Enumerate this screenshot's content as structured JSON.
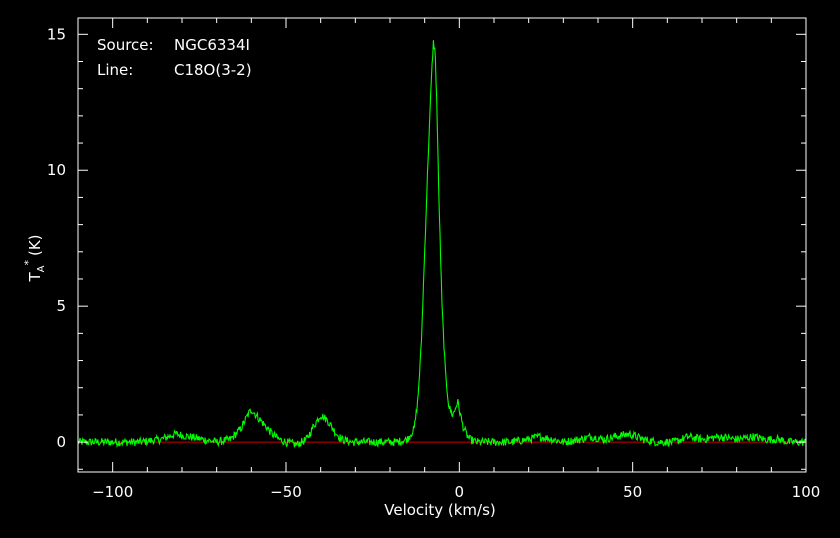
{
  "chart_data": {
    "type": "line",
    "info": {
      "source_label": "Source:",
      "source_value": "NGC6334I",
      "line_label": "Line:",
      "line_value": "C18O(3-2)"
    },
    "xlabel": "Velocity (km/s)",
    "ylabel_main": "T",
    "ylabel_sub": "A",
    "ylabel_sup": "*",
    "ylabel_unit": "(K)",
    "xlim": [
      -110,
      100
    ],
    "ylim": [
      -1.1,
      15.6
    ],
    "x_ticks": [
      -100,
      -50,
      0,
      50,
      100
    ],
    "x_tick_labels": [
      "−100",
      "−50",
      "0",
      "50",
      "100"
    ],
    "y_ticks": [
      0,
      5,
      10,
      15
    ],
    "y_tick_labels": [
      "0",
      "5",
      "10",
      "15"
    ],
    "x_minor_step": 10,
    "y_minor_step": 1,
    "grid": false,
    "baseline": 0,
    "colors": {
      "background": "#000000",
      "frame": "#ffffff",
      "spectrum": "#00ff00",
      "baseline": "#cc0000"
    },
    "series": [
      {
        "x": [
          -110,
          -100,
          -92,
          -86,
          -82,
          -78,
          -74,
          -70,
          -66,
          -63,
          -61,
          -60,
          -58,
          -56,
          -54,
          -52,
          -50,
          -47,
          -44,
          -42,
          -40,
          -38,
          -36,
          -34,
          -31,
          -27,
          -22,
          -18,
          -15,
          -13,
          -12,
          -11,
          -10,
          -9,
          -8,
          -7.5,
          -7,
          -6.5,
          -6,
          -5,
          -4,
          -3,
          -2,
          -1.5,
          -0.5,
          0,
          1,
          2,
          3,
          5,
          10,
          15,
          20,
          23,
          27,
          30,
          35,
          38,
          42,
          45,
          49,
          53,
          57,
          62,
          66,
          70,
          75,
          80,
          85,
          88,
          92,
          95,
          100
        ],
        "y": [
          0,
          0,
          0,
          0.1,
          0.3,
          0.2,
          0.1,
          0,
          0.1,
          0.5,
          1.0,
          1.2,
          0.9,
          0.6,
          0.3,
          0.1,
          0,
          -0.1,
          0.1,
          0.6,
          1.0,
          0.8,
          0.4,
          0.1,
          0,
          0,
          0,
          0,
          0.1,
          0.5,
          1.5,
          3.5,
          7.0,
          10.5,
          13.5,
          14.7,
          14.4,
          12.5,
          9.5,
          5.0,
          2.5,
          1.3,
          1.0,
          1.1,
          1.5,
          1.2,
          0.6,
          0.3,
          0.1,
          0,
          0,
          0,
          0.1,
          0.2,
          0.1,
          0,
          0.1,
          0.2,
          0.1,
          0.2,
          0.3,
          0.1,
          0,
          0,
          0.2,
          0.1,
          0.2,
          0.1,
          0.2,
          0.1,
          0.1,
          0,
          0
        ]
      }
    ]
  }
}
